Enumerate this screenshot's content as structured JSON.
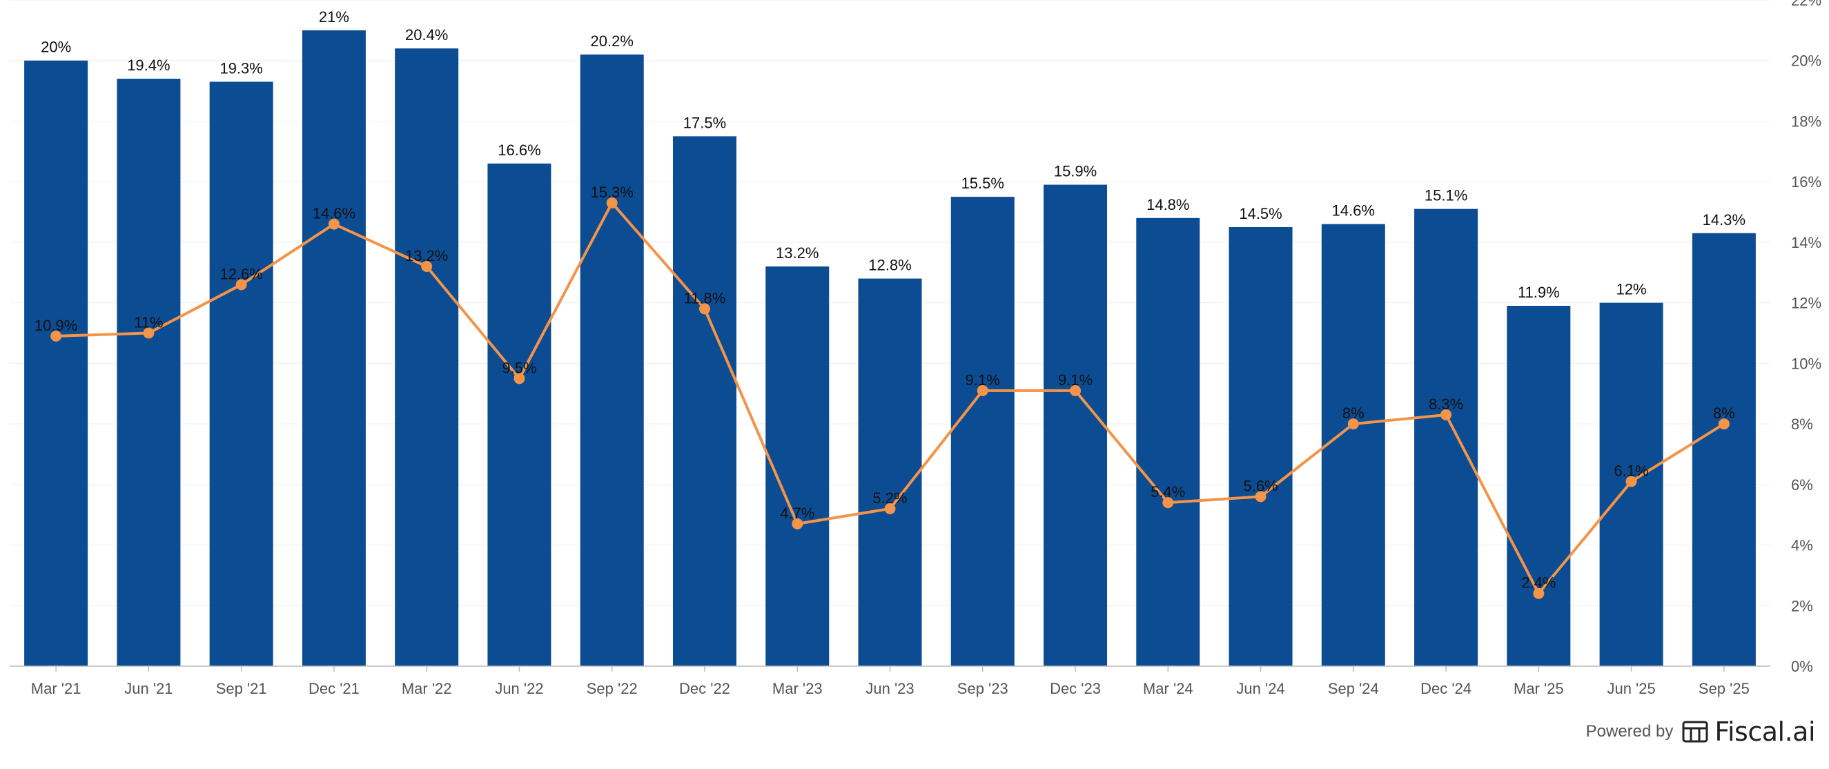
{
  "chart_data": {
    "type": "bar",
    "categories": [
      "Mar '21",
      "Jun '21",
      "Sep '21",
      "Dec '21",
      "Mar '22",
      "Jun '22",
      "Sep '22",
      "Dec '22",
      "Mar '23",
      "Jun '23",
      "Sep '23",
      "Dec '23",
      "Mar '24",
      "Jun '24",
      "Sep '24",
      "Dec '24",
      "Mar '25",
      "Jun '25",
      "Sep '25"
    ],
    "series": [
      {
        "type": "bar",
        "color": "#0c4c92",
        "values": [
          20,
          19.4,
          19.3,
          21,
          20.4,
          16.6,
          20.2,
          17.5,
          13.2,
          12.8,
          15.5,
          15.9,
          14.8,
          14.5,
          14.6,
          15.1,
          11.9,
          12,
          14.3
        ],
        "labels": [
          "20%",
          "19.4%",
          "19.3%",
          "21%",
          "20.4%",
          "16.6%",
          "20.2%",
          "17.5%",
          "13.2%",
          "12.8%",
          "15.5%",
          "15.9%",
          "14.8%",
          "14.5%",
          "14.6%",
          "15.1%",
          "11.9%",
          "12%",
          "14.3%"
        ]
      },
      {
        "type": "line",
        "color": "#f39448",
        "values": [
          10.9,
          11,
          12.6,
          14.6,
          13.2,
          9.5,
          15.3,
          11.8,
          4.7,
          5.2,
          9.1,
          9.1,
          5.4,
          5.6,
          8,
          8.3,
          2.4,
          6.1,
          8
        ],
        "labels": [
          "10.9%",
          "11%",
          "12.6%",
          "14.6%",
          "13.2%",
          "9.5%",
          "15.3%",
          "11.8%",
          "4.7%",
          "5.2%",
          "9.1%",
          "9.1%",
          "5.4%",
          "5.6%",
          "8%",
          "8.3%",
          "2.4%",
          "6.1%",
          "8%"
        ]
      }
    ],
    "y_axis": {
      "position": "right",
      "ylim": [
        0,
        22
      ],
      "ticks": [
        0,
        2,
        4,
        6,
        8,
        10,
        12,
        14,
        16,
        18,
        20,
        22
      ],
      "tick_labels": [
        "0%",
        "2%",
        "4%",
        "6%",
        "8%",
        "10%",
        "12%",
        "14%",
        "16%",
        "18%",
        "20%",
        "22%"
      ]
    },
    "title": "",
    "xlabel": "",
    "ylabel": "",
    "legend": "none",
    "grid": true
  },
  "footer": {
    "powered_by": "Powered by",
    "brand": "Fiscal.ai"
  }
}
